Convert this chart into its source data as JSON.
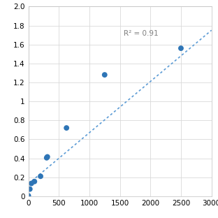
{
  "x_data": [
    0,
    25,
    50,
    100,
    200,
    300,
    312,
    625,
    1250,
    2500
  ],
  "y_data": [
    0.005,
    0.075,
    0.135,
    0.155,
    0.21,
    0.405,
    0.415,
    0.72,
    1.28,
    1.56
  ],
  "trendline_x": [
    0,
    3000
  ],
  "trendline_y": [
    0.13,
    1.75
  ],
  "r_squared": "R² = 0.91",
  "r_squared_x": 1560,
  "r_squared_y": 1.68,
  "xlim": [
    0,
    3000
  ],
  "ylim": [
    0,
    2
  ],
  "xticks": [
    0,
    500,
    1000,
    1500,
    2000,
    2500,
    3000
  ],
  "yticks": [
    0,
    0.2,
    0.4,
    0.6,
    0.8,
    1.0,
    1.2,
    1.4,
    1.6,
    1.8,
    2.0
  ],
  "dot_color": "#2e75b6",
  "line_color": "#5b9bd5",
  "background_color": "#ffffff",
  "grid_color": "#d9d9d9",
  "marker_size": 32,
  "line_width": 1.2,
  "font_size": 7.5,
  "annotation_font_size": 7.5,
  "annotation_color": "#7f7f7f"
}
